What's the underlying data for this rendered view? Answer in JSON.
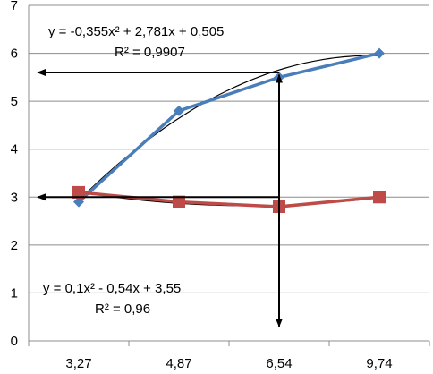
{
  "chart_data": {
    "type": "line",
    "categories": [
      "3,27",
      "4,87",
      "6,54",
      "9,74"
    ],
    "ylim": [
      0,
      7
    ],
    "y_ticks": [
      0,
      1,
      2,
      3,
      4,
      5,
      6,
      7
    ],
    "grid": "horizontal",
    "legend": "none",
    "series": [
      {
        "color": "#4a7ebb",
        "marker": "diamond",
        "values": [
          2.9,
          4.8,
          5.5,
          6.0
        ]
      },
      {
        "color": "#be4b48",
        "marker": "square",
        "values": [
          3.1,
          2.9,
          2.8,
          3.0
        ]
      }
    ],
    "trendlines": [
      {
        "series_index": 0,
        "type": "polynomial",
        "coefficients": [
          -0.355,
          2.781,
          0.505
        ],
        "equation": "y = -0,355x² + 2,781x + 0,505",
        "r2": "R² = 0,9907"
      },
      {
        "series_index": 1,
        "type": "polynomial",
        "coefficients": [
          0.1,
          -0.54,
          3.55
        ],
        "equation": "y = 0,1x² - 0,54x + 3,55",
        "r2": "R² = 0,96"
      }
    ],
    "annotations": [
      {
        "kind": "horizontal-arrow",
        "y": 5.6,
        "x_to": 6.54
      },
      {
        "kind": "horizontal-arrow",
        "y": 3.0,
        "x_to": 6.54
      },
      {
        "kind": "vertical-double-arrow",
        "x": 6.54,
        "y_from": 0.3,
        "y_to": 5.55
      }
    ]
  }
}
